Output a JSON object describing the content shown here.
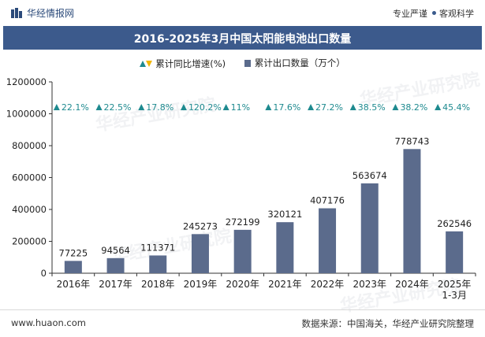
{
  "header": {
    "brand": "华经情报网",
    "slogan_left": "专业严谨",
    "slogan_right": "客观科学"
  },
  "footer": {
    "website": "www.huaon.com",
    "source": "数据来源：中国海关，华经产业研究院整理"
  },
  "watermark": "华经产业研究院",
  "colors": {
    "bar": "#5b6b8c",
    "growth_up": "#1e8a8f",
    "growth_down": "#f2b705",
    "title_bg": "#3c5a8c"
  },
  "chart_data": {
    "type": "bar",
    "title": "2016-2025年3月中国太阳能电池出口数量",
    "categories": [
      "2016年",
      "2017年",
      "2018年",
      "2019年",
      "2020年",
      "2021年",
      "2022年",
      "2023年",
      "2024年",
      "2025年\n1-3月"
    ],
    "series": [
      {
        "name": "累计出口数量（万个）",
        "values": [
          77225,
          94564,
          111371,
          245273,
          272199,
          320121,
          407176,
          563674,
          778743,
          262546
        ]
      },
      {
        "name": "累计同比增速(%)",
        "values": [
          "22.1%",
          "22.5%",
          "17.8%",
          "120.2%",
          "11%",
          "17.6%",
          "27.2%",
          "38.5%",
          "38.2%",
          "45.4%"
        ]
      }
    ],
    "ylim": [
      0,
      1200000
    ],
    "yticks": [
      "0",
      "200000",
      "400000",
      "600000",
      "800000",
      "1000000",
      "1200000"
    ],
    "grid": false,
    "legend_position": "top"
  }
}
